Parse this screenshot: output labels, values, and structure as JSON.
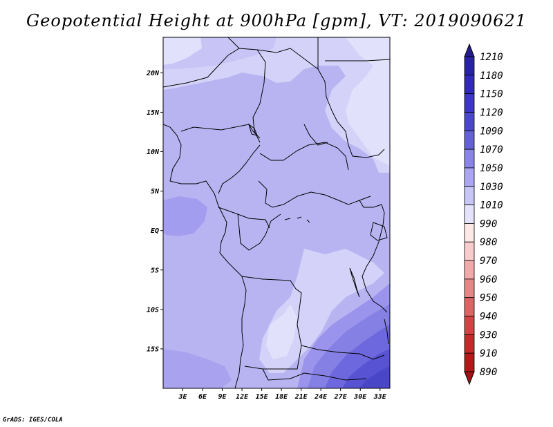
{
  "title": "Geopotential Height at 900hPa [gpm], VT: 2019090621",
  "credit": "GrADS: IGES/COLA",
  "map": {
    "region": "Central Africa",
    "lon_range": [
      0,
      34.5
    ],
    "lat_range": [
      -20,
      24.5
    ],
    "lat_ticks": [
      {
        "value": 20,
        "label": "20N"
      },
      {
        "value": 15,
        "label": "15N"
      },
      {
        "value": 10,
        "label": "10N"
      },
      {
        "value": 5,
        "label": "5N"
      },
      {
        "value": 0,
        "label": "EQ"
      },
      {
        "value": -5,
        "label": "5S"
      },
      {
        "value": -10,
        "label": "10S"
      },
      {
        "value": -15,
        "label": "15S"
      }
    ],
    "lon_ticks": [
      {
        "value": 3,
        "label": "3E"
      },
      {
        "value": 6,
        "label": "6E"
      },
      {
        "value": 9,
        "label": "9E"
      },
      {
        "value": 12,
        "label": "12E"
      },
      {
        "value": 15,
        "label": "15E"
      },
      {
        "value": 18,
        "label": "18E"
      },
      {
        "value": 21,
        "label": "21E"
      },
      {
        "value": 24,
        "label": "24E"
      },
      {
        "value": 27,
        "label": "27E"
      },
      {
        "value": 30,
        "label": "30E"
      },
      {
        "value": 33,
        "label": "33E"
      }
    ]
  },
  "colorbar": {
    "levels": [
      {
        "label": "1210",
        "color": "#241c8c"
      },
      {
        "label": "1180",
        "color": "#2a22a4"
      },
      {
        "label": "1150",
        "color": "#3229b8"
      },
      {
        "label": "1120",
        "color": "#3d36c4"
      },
      {
        "label": "1090",
        "color": "#4b47cc"
      },
      {
        "label": "1070",
        "color": "#6460d6"
      },
      {
        "label": "1050",
        "color": "#8a84e8"
      },
      {
        "label": "1030",
        "color": "#aba6f0"
      },
      {
        "label": "1010",
        "color": "#c8c6f5"
      },
      {
        "label": "990",
        "color": "#e4e3fb"
      },
      {
        "label": "980",
        "color": "#fde8e8"
      },
      {
        "label": "970",
        "color": "#f8cccc"
      },
      {
        "label": "960",
        "color": "#f0aaaa"
      },
      {
        "label": "950",
        "color": "#e68686"
      },
      {
        "label": "940",
        "color": "#dc6464"
      },
      {
        "label": "930",
        "color": "#d24444"
      },
      {
        "label": "910",
        "color": "#c42a2a"
      },
      {
        "label": "890",
        "color": "#b21a1a"
      }
    ],
    "bottom_color": "#a01414"
  },
  "fields": {
    "background": "#b8b4f2",
    "light": "#d4d2f8",
    "lighter": "#e2e1fb",
    "medium": "#a8a2ef",
    "dark1": "#8a84e8",
    "dark2": "#6e68de",
    "dark3": "#5753d2",
    "dark4": "#4a46c8"
  }
}
